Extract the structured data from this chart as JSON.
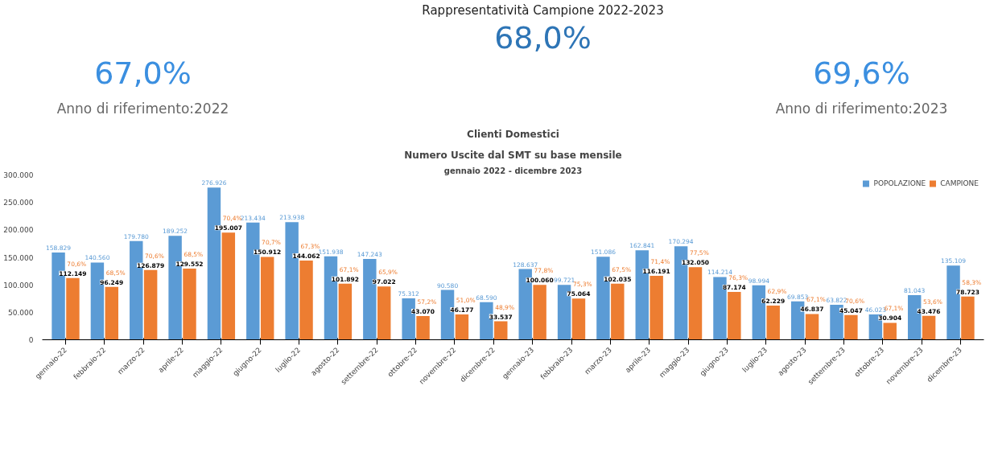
{
  "chart_data": [
    {
      "type": "other",
      "title": "Rappresentatività Campione 2022-2023",
      "annotations": [
        "68,0%",
        "67,0%",
        "Anno di riferimento:2022",
        "69,6%",
        "Anno di riferimento:2023"
      ]
    },
    {
      "type": "bar",
      "title": "Clienti Domestici",
      "subtitle": "Numero Uscite dal SMT su base mensile",
      "annotations": [
        "gennaio 2022 - dicembre 2023",
        {
          "text": "70,6%",
          "x": "gennaio-22",
          "y": 112149
        },
        {
          "text": "68,5%",
          "x": "febbraio-22",
          "y": 96249
        },
        {
          "text": "70,6%",
          "x": "marzo-22",
          "y": 126879
        },
        {
          "text": "68,5%",
          "x": "aprile-22",
          "y": 129552
        },
        {
          "text": "70,4%",
          "x": "maggio-22",
          "y": 195007
        },
        {
          "text": "70,7%",
          "x": "giugno-22",
          "y": 150912
        },
        {
          "text": "67,3%",
          "x": "luglio-22",
          "y": 144062
        },
        {
          "text": "67,1%",
          "x": "agosto-22",
          "y": 101892
        },
        {
          "text": "65,9%",
          "x": "settembre-22",
          "y": 97022
        },
        {
          "text": "57,2%",
          "x": "ottobre-22",
          "y": 43070
        },
        {
          "text": "51,0%",
          "x": "novembre-22",
          "y": 46177
        },
        {
          "text": "48,9%",
          "x": "dicembre-22",
          "y": 33537
        },
        {
          "text": "77,8%",
          "x": "gennaio-23",
          "y": 100060
        },
        {
          "text": "75,3%",
          "x": "febbraio-23",
          "y": 75064
        },
        {
          "text": "67,5%",
          "x": "marzo-23",
          "y": 102035
        },
        {
          "text": "71,4%",
          "x": "aprile-23",
          "y": 116191
        },
        {
          "text": "77,5%",
          "x": "maggio-23",
          "y": 132050
        },
        {
          "text": "76,3%",
          "x": "giugno-23",
          "y": 87174
        },
        {
          "text": "62,9%",
          "x": "luglio-23",
          "y": 62229
        },
        {
          "text": "67,1%",
          "x": "agosto-23",
          "y": 46837
        },
        {
          "text": "70,6%",
          "x": "settembre-23",
          "y": 45047
        },
        {
          "text": "67,1%",
          "x": "ottobre-23",
          "y": 30904
        },
        {
          "text": "53,6%",
          "x": "novembre-23",
          "y": 43476
        },
        {
          "text": "58,3%",
          "x": "dicembre-23",
          "y": 78723
        }
      ],
      "categories": [
        "gennaio-22",
        "febbraio-22",
        "marzo-22",
        "aprile-22",
        "maggio-22",
        "giugno-22",
        "luglio-22",
        "agosto-22",
        "settembre-22",
        "ottobre-22",
        "novembre-22",
        "dicembre-22",
        "gennaio-23",
        "febbraio-23",
        "marzo-23",
        "aprile-23",
        "maggio-23",
        "giugno-23",
        "luglio-23",
        "agosto-23",
        "settembre-23",
        "ottobre-23",
        "novembre-23",
        "dicembre-23"
      ],
      "series": [
        {
          "name": "POPOLAZIONE",
          "color": "#5b9bd5",
          "values": [
            158829,
            140560,
            179780,
            189252,
            276926,
            213434,
            213938,
            151938,
            147243,
            75312,
            90580,
            68590,
            128637,
            99721,
            151086,
            162841,
            170294,
            114214,
            98994,
            69853,
            63822,
            46023,
            81043,
            135109
          ],
          "value_labels": [
            "158.829",
            "140.560",
            "179.780",
            "189.252",
            "276.926",
            "213.434",
            "213.938",
            "151.938",
            "147.243",
            "75.312",
            "90.580",
            "68.590",
            "128.637",
            "99.721",
            "151.086",
            "162.841",
            "170.294",
            "114.214",
            "98.994",
            "69.853",
            "63.822",
            "46.023",
            "81.043",
            "135.109"
          ]
        },
        {
          "name": "CAMPIONE",
          "color": "#ed7d31",
          "values": [
            112149,
            96249,
            126879,
            129552,
            195007,
            150912,
            144062,
            101892,
            97022,
            43070,
            46177,
            33537,
            100060,
            75064,
            102035,
            116191,
            132050,
            87174,
            62229,
            46837,
            45047,
            30904,
            43476,
            78723
          ],
          "value_labels": [
            "112.149",
            "96.249",
            "126.879",
            "129.552",
            "195.007",
            "150.912",
            "144.062",
            "101.892",
            "97.022",
            "43.070",
            "46.177",
            "33.537",
            "100.060",
            "75.064",
            "102.035",
            "116.191",
            "132.050",
            "87.174",
            "62.229",
            "46.837",
            "45.047",
            "30.904",
            "43.476",
            "78.723"
          ]
        }
      ],
      "ylim": [
        0,
        300000
      ],
      "yticks": [
        {
          "value": 0,
          "label": "0"
        },
        {
          "value": 50000,
          "label": "50.000"
        },
        {
          "value": 100000,
          "label": "100.000"
        },
        {
          "value": 150000,
          "label": "150.000"
        },
        {
          "value": 200000,
          "label": "200.000"
        },
        {
          "value": 250000,
          "label": "250.000"
        },
        {
          "value": 300000,
          "label": "300.000"
        }
      ],
      "legend": "top right",
      "grid": false
    }
  ]
}
